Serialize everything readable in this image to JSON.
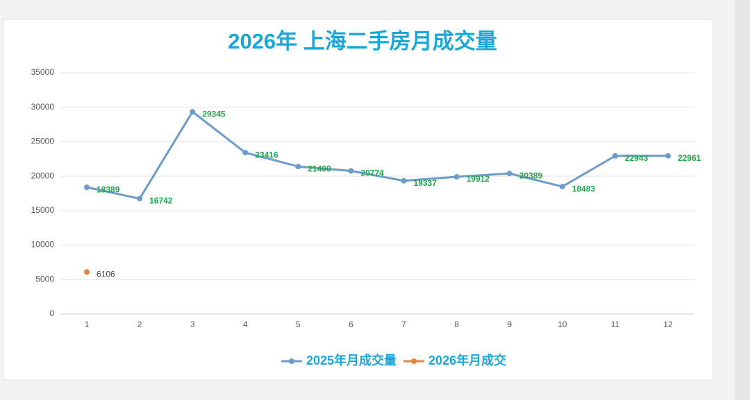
{
  "chart_data": {
    "type": "line",
    "title": "2026年 上海二手房月成交量",
    "categories": [
      1,
      2,
      3,
      4,
      5,
      6,
      7,
      8,
      9,
      10,
      11,
      12
    ],
    "series": [
      {
        "name": "2025年月成交量",
        "color": "#6b9bc8",
        "label_color": "#1fa64b",
        "values": [
          18389,
          16742,
          29345,
          23416,
          21400,
          20774,
          19337,
          19912,
          20389,
          18483,
          22943,
          22961
        ]
      },
      {
        "name": "2026年月成交",
        "color": "#e8833a",
        "label_color": "#444444",
        "values": [
          6106,
          null,
          null,
          null,
          null,
          null,
          null,
          null,
          null,
          null,
          null,
          null
        ]
      }
    ],
    "ylim": [
      0,
      35000
    ],
    "yticks": [
      0,
      5000,
      10000,
      15000,
      20000,
      25000,
      30000,
      35000
    ],
    "grid": true,
    "legend": "bottom"
  }
}
